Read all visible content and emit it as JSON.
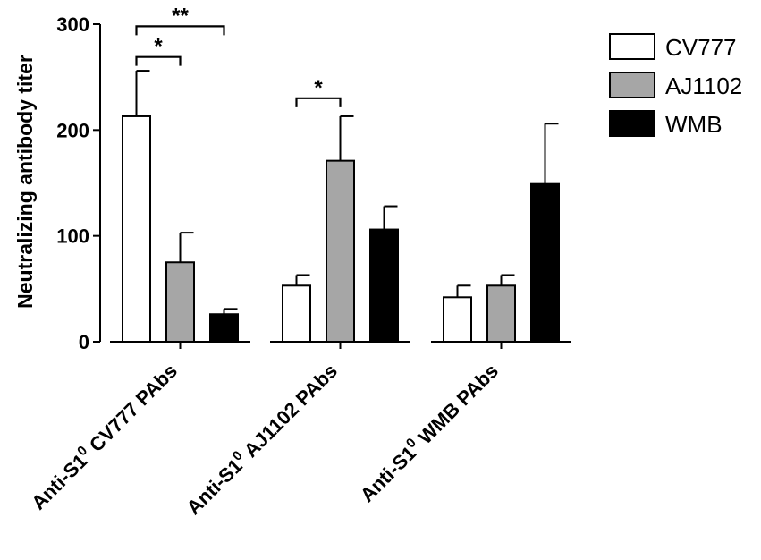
{
  "chart_data": {
    "type": "bar",
    "categories": [
      {
        "prefix": "Anti-S1",
        "superscript": "0",
        "suffix": " CV777 PAbs"
      },
      {
        "prefix": "Anti-S1",
        "superscript": "0",
        "suffix": " AJ1102 PAbs"
      },
      {
        "prefix": "Anti-S1",
        "superscript": "0",
        "suffix": " WMB PAbs"
      }
    ],
    "series": [
      {
        "name": "CV777",
        "color": "#ffffff",
        "values": [
          213,
          53,
          42
        ],
        "errors": [
          43,
          10,
          11
        ]
      },
      {
        "name": "AJ1102",
        "color": "#a6a6a6",
        "values": [
          75,
          171,
          53
        ],
        "errors": [
          28,
          42,
          10
        ]
      },
      {
        "name": "WMB",
        "color": "#000000",
        "values": [
          26,
          106,
          149
        ],
        "errors": [
          5,
          22,
          57
        ]
      }
    ],
    "ylabel": "Neutralizing antibody titer",
    "xlabel": "",
    "ylim": [
      0,
      300
    ],
    "yticks": [
      0,
      100,
      200,
      300
    ],
    "legend_position": "top-right",
    "significance": [
      {
        "label": "*",
        "group": 0,
        "from_series": 0,
        "to_series": 1,
        "level": 269
      },
      {
        "label": "**",
        "group": 0,
        "from_series": 0,
        "to_series": 2,
        "level": 298
      },
      {
        "label": "*",
        "group": 1,
        "from_series": 0,
        "to_series": 1,
        "level": 230
      }
    ]
  }
}
